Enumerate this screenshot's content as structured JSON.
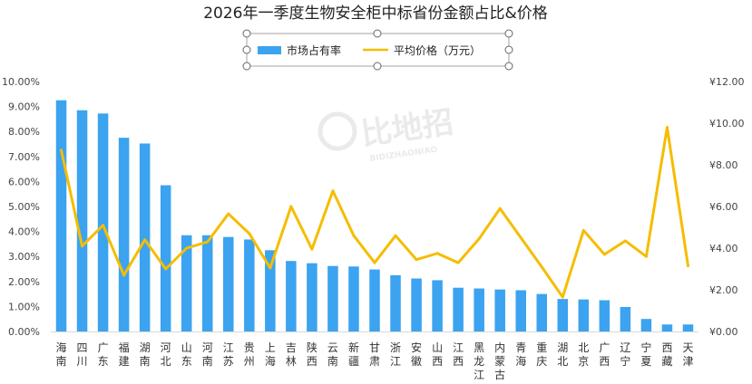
{
  "chart_data": {
    "type": "bar",
    "title": "2026年一季度生物安全柜中标省份金额占比&价格",
    "categories": [
      "海南",
      "四川",
      "广东",
      "福建",
      "湖南",
      "河北",
      "山东",
      "河南",
      "江苏",
      "贵州",
      "上海",
      "吉林",
      "陕西",
      "云南",
      "新疆",
      "甘肃",
      "浙江",
      "安徽",
      "山西",
      "江西",
      "黑龙江",
      "内蒙古",
      "青海",
      "重庆",
      "湖北",
      "北京",
      "广西",
      "辽宁",
      "宁夏",
      "西藏",
      "天津"
    ],
    "series": [
      {
        "name": "市场占有率",
        "type": "bar",
        "axis": "left",
        "color": "#3ba3f0",
        "values": [
          9.25,
          8.85,
          8.72,
          7.75,
          7.52,
          5.85,
          3.85,
          3.85,
          3.78,
          3.68,
          3.25,
          2.82,
          2.73,
          2.62,
          2.6,
          2.48,
          2.25,
          2.12,
          2.05,
          1.75,
          1.72,
          1.68,
          1.65,
          1.5,
          1.3,
          1.28,
          1.25,
          0.98,
          0.5,
          0.28,
          0.28
        ]
      },
      {
        "name": "平均价格（万元）",
        "type": "line",
        "axis": "right",
        "color": "#f5bd00",
        "values": [
          8.7,
          4.1,
          5.1,
          2.7,
          4.4,
          3.0,
          4.0,
          4.3,
          5.65,
          4.7,
          3.05,
          6.0,
          3.95,
          6.75,
          4.6,
          3.3,
          4.6,
          3.45,
          3.75,
          3.3,
          4.45,
          5.9,
          4.5,
          3.1,
          1.65,
          4.85,
          3.7,
          4.35,
          3.6,
          9.8,
          3.15
        ]
      }
    ],
    "y_left": {
      "min": 0,
      "max": 10,
      "step": 1,
      "format": "percent",
      "ticks": [
        "0.00%",
        "1.00%",
        "2.00%",
        "3.00%",
        "4.00%",
        "5.00%",
        "6.00%",
        "7.00%",
        "8.00%",
        "9.00%",
        "10.00%"
      ]
    },
    "y_right": {
      "min": 0,
      "max": 12,
      "step": 2,
      "format": "yuan",
      "ticks": [
        "¥0.00",
        "¥2.00",
        "¥4.00",
        "¥6.00",
        "¥8.00",
        "¥10.00",
        "¥12.00"
      ]
    },
    "legend": {
      "position": "top",
      "items": [
        "市场占有率",
        "平均价格（万元）"
      ]
    },
    "grid": false
  },
  "watermark": {
    "text": "比地招",
    "subtext": "BIDIZHAONIAO"
  }
}
